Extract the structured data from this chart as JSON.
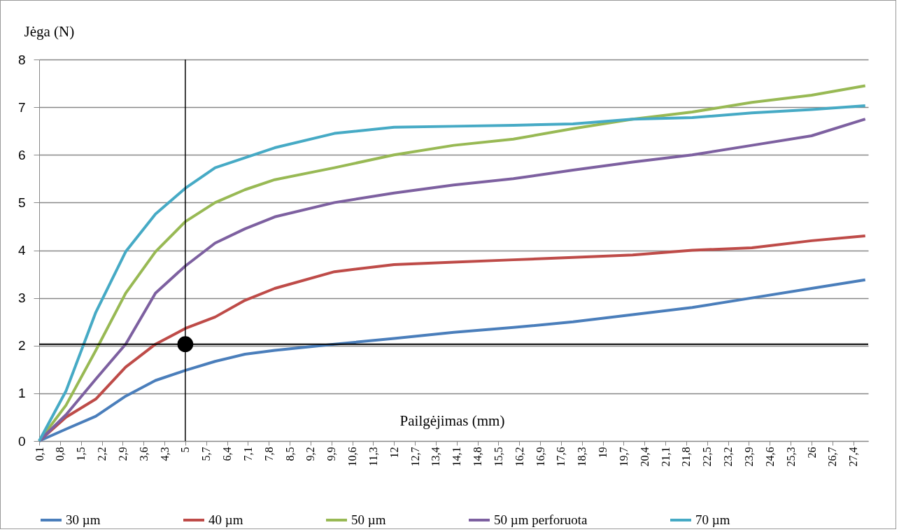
{
  "chart_data": {
    "type": "line",
    "xlabel": "Pailgėjimas (mm)",
    "ylabel": "Jėga (N)",
    "x": [
      0.1,
      1,
      2,
      3,
      4,
      5,
      6,
      7,
      8,
      10,
      12,
      14,
      16,
      18,
      20,
      22,
      24,
      26,
      27.8
    ],
    "xlim": [
      0.1,
      27.9
    ],
    "xticks": [
      {
        "value": 0.1,
        "label": "0,1"
      },
      {
        "value": 0.8,
        "label": "0,8"
      },
      {
        "value": 1.5,
        "label": "1,5"
      },
      {
        "value": 2.2,
        "label": "2,2"
      },
      {
        "value": 2.9,
        "label": "2,9"
      },
      {
        "value": 3.6,
        "label": "3,6"
      },
      {
        "value": 4.3,
        "label": "4,3"
      },
      5,
      {
        "value": 5.7,
        "label": "5,7"
      },
      {
        "value": 6.4,
        "label": "6,4"
      },
      {
        "value": 7.1,
        "label": "7,1"
      },
      {
        "value": 7.8,
        "label": "7,8"
      },
      {
        "value": 8.5,
        "label": "8,5"
      },
      {
        "value": 9.2,
        "label": "9,2"
      },
      {
        "value": 9.9,
        "label": "9,9"
      },
      {
        "value": 10.6,
        "label": "10,6"
      },
      {
        "value": 11.3,
        "label": "11,3"
      },
      12,
      {
        "value": 12.7,
        "label": "12,7"
      },
      {
        "value": 13.4,
        "label": "13,4"
      },
      {
        "value": 14.1,
        "label": "14,1"
      },
      {
        "value": 14.8,
        "label": "14,8"
      },
      {
        "value": 15.5,
        "label": "15,5"
      },
      {
        "value": 16.2,
        "label": "16,2"
      },
      {
        "value": 16.9,
        "label": "16,9"
      },
      {
        "value": 17.6,
        "label": "17,6"
      },
      {
        "value": 18.3,
        "label": "18,3"
      },
      19,
      {
        "value": 19.7,
        "label": "19,7"
      },
      {
        "value": 20.4,
        "label": "20,4"
      },
      {
        "value": 21.1,
        "label": "21,1"
      },
      {
        "value": 21.8,
        "label": "21,8"
      },
      {
        "value": 22.5,
        "label": "22,5"
      },
      {
        "value": 23.2,
        "label": "23,2"
      },
      {
        "value": 23.9,
        "label": "23,9"
      },
      {
        "value": 24.6,
        "label": "24,6"
      },
      {
        "value": 25.3,
        "label": "25,3"
      },
      26,
      {
        "value": 26.7,
        "label": "26,7"
      },
      {
        "value": 27.4,
        "label": "27,4"
      }
    ],
    "ylim": [
      0,
      8
    ],
    "yticks": [
      0,
      1,
      2,
      3,
      4,
      5,
      6,
      7,
      8
    ],
    "grid": "y",
    "legend": "bottom",
    "marker": "none",
    "line_style": "solid",
    "series": [
      {
        "name": "30 µm",
        "color": "#4a7ebb",
        "values": [
          0,
          0.25,
          0.52,
          0.94,
          1.27,
          1.48,
          1.67,
          1.82,
          1.9,
          2.03,
          2.15,
          2.28,
          2.38,
          2.5,
          2.65,
          2.8,
          3.0,
          3.2,
          3.38
        ]
      },
      {
        "name": "40 µm",
        "color": "#be4b48",
        "values": [
          0,
          0.5,
          0.88,
          1.55,
          2.03,
          2.36,
          2.6,
          2.95,
          3.2,
          3.55,
          3.7,
          3.75,
          3.8,
          3.85,
          3.9,
          4.0,
          4.05,
          4.2,
          4.3
        ]
      },
      {
        "name": "50 µm",
        "color": "#98b954",
        "values": [
          0,
          0.75,
          1.9,
          3.1,
          3.97,
          4.6,
          5.0,
          5.27,
          5.48,
          5.73,
          6.0,
          6.2,
          6.33,
          6.55,
          6.75,
          6.9,
          7.1,
          7.25,
          7.45
        ]
      },
      {
        "name": "50 µm perforuota",
        "color": "#7d60a0",
        "values": [
          0,
          0.55,
          1.3,
          2.03,
          3.1,
          3.67,
          4.15,
          4.45,
          4.7,
          5.0,
          5.2,
          5.37,
          5.5,
          5.68,
          5.85,
          6.0,
          6.2,
          6.4,
          6.75
        ]
      },
      {
        "name": "70 µm",
        "color": "#46aac5",
        "values": [
          0,
          1.05,
          2.7,
          3.97,
          4.76,
          5.3,
          5.73,
          5.94,
          6.15,
          6.45,
          6.58,
          6.6,
          6.62,
          6.65,
          6.75,
          6.78,
          6.88,
          6.95,
          7.03
        ]
      },
      {
        "type": "scatter",
        "color": "#000000",
        "marker": "circle",
        "x": [
          5
        ],
        "values": [
          2.03
        ]
      }
    ],
    "ref_lines": [
      {
        "axis": "x",
        "value": 5,
        "color": "#000000"
      },
      {
        "axis": "y",
        "value": 2.03,
        "color": "#000000"
      }
    ]
  }
}
